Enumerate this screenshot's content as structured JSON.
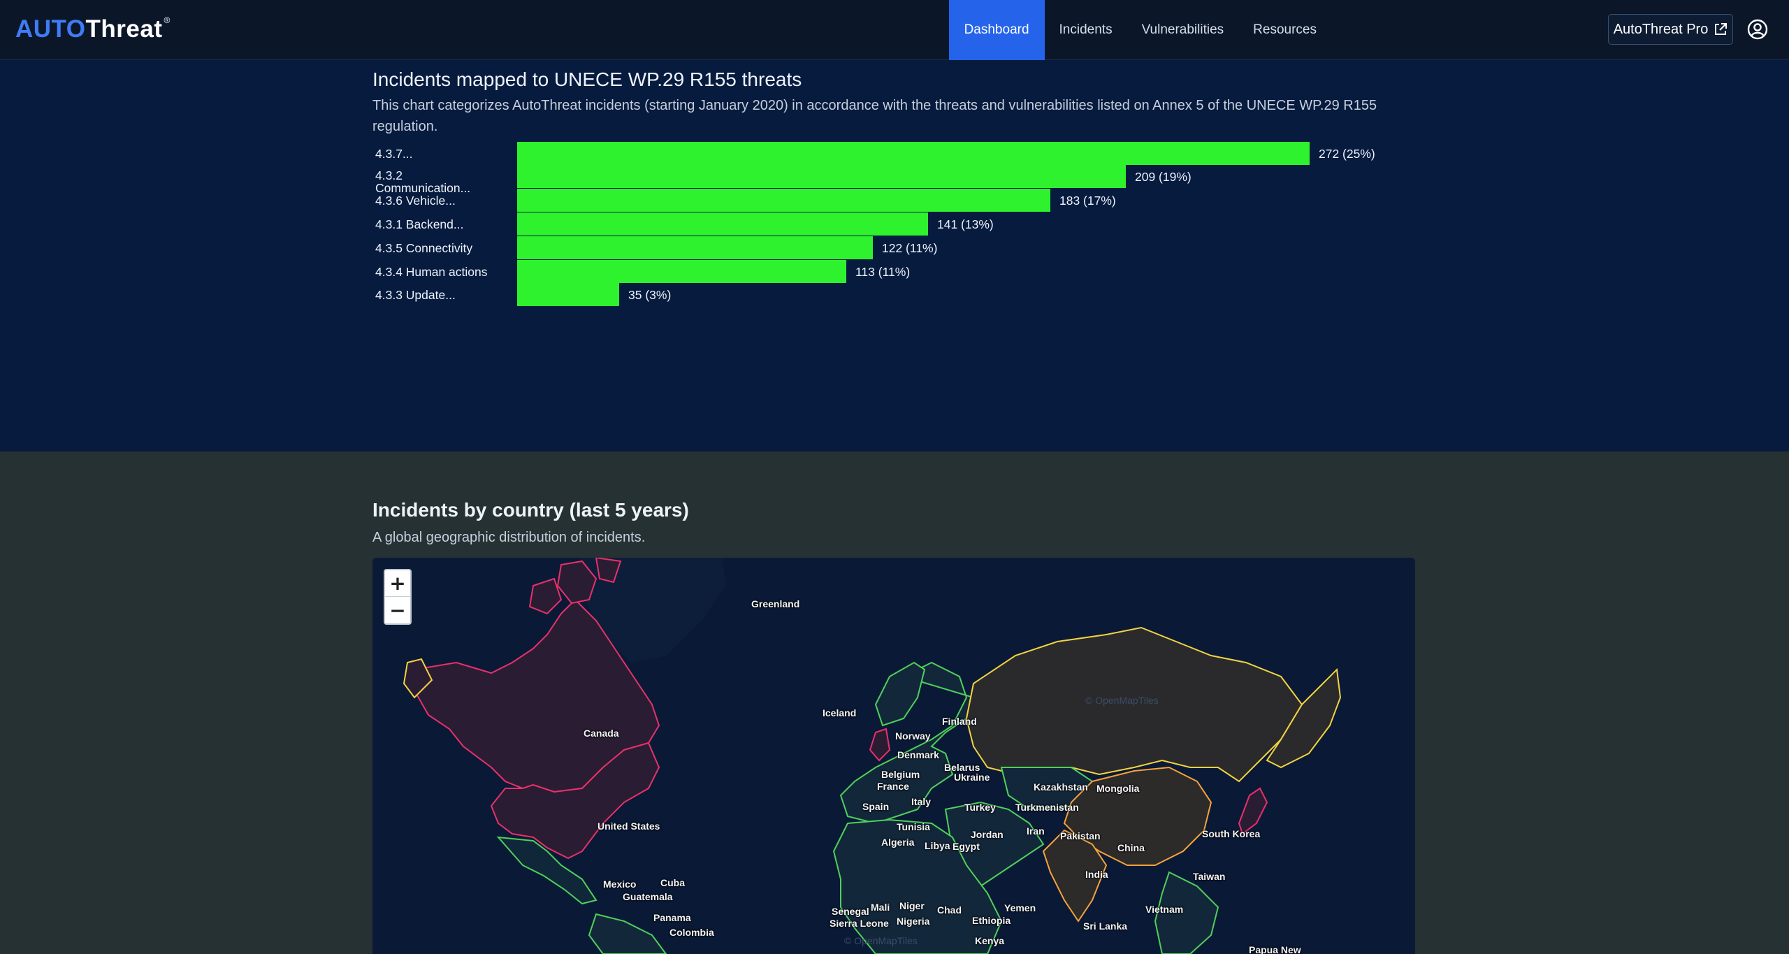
{
  "nav": {
    "logo_auto": "AUTO",
    "logo_threat": "Threat",
    "logo_reg": "®",
    "links": [
      "Dashboard",
      "Incidents",
      "Vulnerabilities",
      "Resources"
    ],
    "pro_label": "AutoThreat Pro",
    "icons": {
      "external": "external-link-icon",
      "user": "user-circle-icon"
    }
  },
  "threats": {
    "title": "Incidents mapped to UNECE WP.29 R155 threats",
    "description": "This chart categorizes AutoThreat incidents (starting January 2020) in accordance with the threats and vulnerabilities listed on Annex 5 of the UNECE WP.29 R155 regulation."
  },
  "chart_data": {
    "type": "bar",
    "orientation": "horizontal",
    "bar_color": "#2ef22e",
    "categories": [
      "4.3.7...",
      "4.3.2 Communication...",
      "4.3.6 Vehicle...",
      "4.3.1 Backend...",
      "4.3.5 Connectivity",
      "4.3.4 Human actions",
      "4.3.3 Update..."
    ],
    "values": [
      272,
      209,
      183,
      141,
      122,
      113,
      35
    ],
    "labels": [
      "272 (25%)",
      "209 (19%)",
      "183 (17%)",
      "141 (13%)",
      "122 (11%)",
      "113 (11%)",
      "35 (3%)"
    ],
    "xlim": [
      0,
      272
    ]
  },
  "map": {
    "title": "Incidents by country (last 5 years)",
    "description": "A global geographic distribution of incidents.",
    "zoom_in": "+",
    "zoom_out": "−",
    "attribution": "© OpenMapTiles",
    "countries": [
      "Greenland",
      "Iceland",
      "Canada",
      "United States",
      "Mexico",
      "Cuba",
      "Guatemala",
      "Panama",
      "Colombia",
      "Norway",
      "Finland",
      "Denmark",
      "Belarus",
      "Belgium",
      "Ukraine",
      "France",
      "Italy",
      "Spain",
      "Turkey",
      "Turkmenistan",
      "Kazakhstan",
      "Mongolia",
      "Tunisia",
      "Algeria",
      "Libya",
      "Egypt",
      "Jordan",
      "Iran",
      "Pakistan",
      "China",
      "South Korea",
      "Taiwan",
      "India",
      "Vietnam",
      "Sri Lanka",
      "Senegal",
      "Mali",
      "Niger",
      "Chad",
      "Sierra Leone",
      "Nigeria",
      "Ethiopia",
      "Yemen",
      "Kenya",
      "Papua New"
    ],
    "colors": {
      "high": "#e8306a",
      "mid": "#f2d340",
      "low": "#4fd05a"
    }
  }
}
